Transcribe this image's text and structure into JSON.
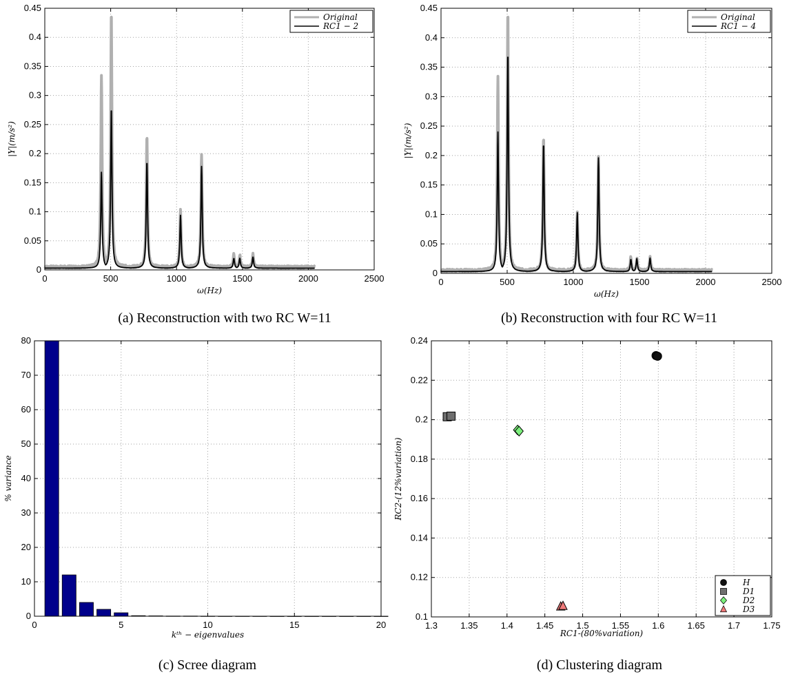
{
  "chart_data": [
    {
      "id": "a",
      "type": "line",
      "caption": "(a) Reconstruction with two RC W=11",
      "xlabel": "ω(Hz)",
      "ylabel": "|Y|(m/s²)",
      "xlim": [
        0,
        2500
      ],
      "ylim": [
        0,
        0.45
      ],
      "xticks": [
        0,
        500,
        1000,
        1500,
        2000,
        2500
      ],
      "yticks": [
        0,
        0.05,
        0.1,
        0.15,
        0.2,
        0.25,
        0.3,
        0.35,
        0.4,
        0.45
      ],
      "grid": true,
      "legend_position": "top-right",
      "baseline": {
        "Original": 0.005,
        "RC1 − 2": 0.003
      },
      "x_end": 2048,
      "series": [
        {
          "name": "Original",
          "color": "#b0b0b0",
          "peaks": [
            {
              "x": 430,
              "y": 0.335
            },
            {
              "x": 505,
              "y": 0.445
            },
            {
              "x": 775,
              "y": 0.232
            },
            {
              "x": 1030,
              "y": 0.103
            },
            {
              "x": 1190,
              "y": 0.2
            },
            {
              "x": 1435,
              "y": 0.028
            },
            {
              "x": 1480,
              "y": 0.026
            },
            {
              "x": 1580,
              "y": 0.028
            }
          ]
        },
        {
          "name": "RC1 − 2",
          "color": "#000000",
          "peaks": [
            {
              "x": 430,
              "y": 0.168
            },
            {
              "x": 505,
              "y": 0.281
            },
            {
              "x": 775,
              "y": 0.188
            },
            {
              "x": 1030,
              "y": 0.094
            },
            {
              "x": 1190,
              "y": 0.178
            },
            {
              "x": 1435,
              "y": 0.02
            },
            {
              "x": 1480,
              "y": 0.02
            },
            {
              "x": 1580,
              "y": 0.022
            }
          ]
        }
      ]
    },
    {
      "id": "b",
      "type": "line",
      "caption": "(b) Reconstruction with four RC W=11",
      "xlabel": "ω(Hz)",
      "ylabel": "|Y|(m/s²)",
      "xlim": [
        0,
        2500
      ],
      "ylim": [
        0,
        0.45
      ],
      "xticks": [
        0,
        500,
        1000,
        1500,
        2000,
        2500
      ],
      "yticks": [
        0,
        0.05,
        0.1,
        0.15,
        0.2,
        0.25,
        0.3,
        0.35,
        0.4,
        0.45
      ],
      "grid": true,
      "legend_position": "top-right",
      "baseline": {
        "Original": 0.005,
        "RC1 − 4": 0.003
      },
      "x_end": 2048,
      "series": [
        {
          "name": "Original",
          "color": "#b0b0b0",
          "peaks": [
            {
              "x": 430,
              "y": 0.335
            },
            {
              "x": 505,
              "y": 0.445
            },
            {
              "x": 775,
              "y": 0.232
            },
            {
              "x": 1030,
              "y": 0.103
            },
            {
              "x": 1190,
              "y": 0.2
            },
            {
              "x": 1435,
              "y": 0.028
            },
            {
              "x": 1480,
              "y": 0.026
            },
            {
              "x": 1580,
              "y": 0.028
            }
          ]
        },
        {
          "name": "RC1 − 4",
          "color": "#000000",
          "peaks": [
            {
              "x": 430,
              "y": 0.24
            },
            {
              "x": 505,
              "y": 0.377
            },
            {
              "x": 775,
              "y": 0.222
            },
            {
              "x": 1030,
              "y": 0.103
            },
            {
              "x": 1190,
              "y": 0.196
            },
            {
              "x": 1435,
              "y": 0.024
            },
            {
              "x": 1480,
              "y": 0.025
            },
            {
              "x": 1580,
              "y": 0.026
            }
          ]
        }
      ]
    },
    {
      "id": "c",
      "type": "bar",
      "caption": "(c) Scree diagram",
      "xlabel": "kᵗʰ − eigenvalues",
      "ylabel": "% variance",
      "xlim": [
        0,
        20
      ],
      "ylim": [
        0,
        80
      ],
      "xticks": [
        0,
        5,
        10,
        15,
        20
      ],
      "yticks": [
        0,
        10,
        20,
        30,
        40,
        50,
        60,
        70,
        80
      ],
      "grid": true,
      "bar_color": "#00008b",
      "x": [
        1,
        2,
        3,
        4,
        5,
        6,
        7,
        8,
        9,
        10,
        11,
        12,
        13,
        14,
        15,
        16,
        17,
        18,
        19,
        20
      ],
      "values": [
        80,
        12,
        4,
        2,
        1,
        0.15,
        0.1,
        0.05,
        0.05,
        0.03,
        0.02,
        0.02,
        0.02,
        0.01,
        0.01,
        0.01,
        0.01,
        0.01,
        0.01,
        0.01
      ]
    },
    {
      "id": "d",
      "type": "scatter",
      "caption": "(d) Clustering diagram",
      "xlabel": "RC1-(80%variation)",
      "ylabel": "RC2-(12%variation)",
      "xlim": [
        1.3,
        1.75
      ],
      "ylim": [
        0.1,
        0.24
      ],
      "xticks": [
        "1.3",
        "1.35",
        "1.4",
        "1.45",
        "1.5",
        "1.55",
        "1.6",
        "1.65",
        "1.7",
        "1.75"
      ],
      "yticks": [
        "0.1",
        "0.12",
        "0.14",
        "0.16",
        "0.18",
        "0.2",
        "0.22",
        "0.24"
      ],
      "grid": true,
      "legend_position": "bottom-right",
      "series": [
        {
          "name": "H",
          "marker": "circle",
          "color": "#111111",
          "points": [
            [
              1.597,
              0.2325
            ],
            [
              1.599,
              0.2322
            ]
          ]
        },
        {
          "name": "D1",
          "marker": "square",
          "color": "#6e6e6e",
          "points": [
            [
              1.321,
              0.2015
            ],
            [
              1.326,
              0.2018
            ]
          ]
        },
        {
          "name": "D2",
          "marker": "diamond",
          "color": "#7cf07c",
          "points": [
            [
              1.414,
              0.1948
            ],
            [
              1.416,
              0.1942
            ]
          ]
        },
        {
          "name": "D3",
          "marker": "triangle",
          "color": "#f07a7a",
          "points": [
            [
              1.471,
              0.1052
            ],
            [
              1.474,
              0.1055
            ]
          ]
        }
      ]
    }
  ]
}
